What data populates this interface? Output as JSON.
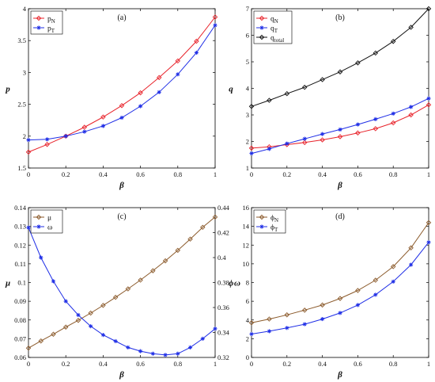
{
  "chart_data": [
    {
      "type": "line",
      "panel_label": "(a)",
      "xlabel": "β",
      "ylabel": "p",
      "xlim": [
        0,
        1
      ],
      "ylim": [
        1.5,
        4
      ],
      "xticks": [
        "0",
        "0.2",
        "0.4",
        "0.6",
        "0.8",
        "1"
      ],
      "yticks": [
        "1.5",
        "2",
        "2.5",
        "3",
        "3.5",
        "4"
      ],
      "legend": {
        "placement": "top-left"
      },
      "x": [
        0,
        0.1,
        0.2,
        0.3,
        0.4,
        0.5,
        0.6,
        0.7,
        0.8,
        0.9,
        1.0
      ],
      "series": [
        {
          "name": "p",
          "sub": "N",
          "color": "#e8232b",
          "marker": "diamond",
          "values": [
            1.75,
            1.87,
            2.0,
            2.14,
            2.3,
            2.48,
            2.68,
            2.92,
            3.18,
            3.49,
            3.87
          ]
        },
        {
          "name": "p",
          "sub": "T",
          "color": "#1f2ee6",
          "marker": "star",
          "values": [
            1.94,
            1.95,
            2.0,
            2.07,
            2.16,
            2.29,
            2.47,
            2.69,
            2.97,
            3.31,
            3.74
          ]
        }
      ]
    },
    {
      "type": "line",
      "panel_label": "(b)",
      "xlabel": "β",
      "ylabel": "q",
      "xlim": [
        0,
        1
      ],
      "ylim": [
        1,
        7
      ],
      "xticks": [
        "0",
        "0.2",
        "0.4",
        "0.6",
        "0.8",
        "1"
      ],
      "yticks": [
        "1",
        "2",
        "3",
        "4",
        "5",
        "6",
        "7"
      ],
      "legend": {
        "placement": "top-left"
      },
      "x": [
        0,
        0.1,
        0.2,
        0.3,
        0.4,
        0.5,
        0.6,
        0.7,
        0.8,
        0.9,
        1.0
      ],
      "series": [
        {
          "name": "q",
          "sub": "N",
          "color": "#e8232b",
          "marker": "diamond",
          "values": [
            1.75,
            1.8,
            1.88,
            1.96,
            2.06,
            2.18,
            2.32,
            2.48,
            2.7,
            3.0,
            3.38
          ]
        },
        {
          "name": "q",
          "sub": "T",
          "color": "#1f2ee6",
          "marker": "star",
          "values": [
            1.55,
            1.72,
            1.92,
            2.1,
            2.28,
            2.45,
            2.64,
            2.84,
            3.05,
            3.3,
            3.62
          ]
        },
        {
          "name": "q",
          "sub": "total",
          "color": "#111111",
          "marker": "diamond",
          "values": [
            3.32,
            3.55,
            3.8,
            4.04,
            4.33,
            4.62,
            4.96,
            5.33,
            5.77,
            6.3,
            7.0
          ]
        }
      ]
    },
    {
      "type": "line",
      "panel_label": "(c)",
      "xlabel": "β",
      "ylabel": "μ",
      "ylabel_right": "ω",
      "xlim": [
        0,
        1
      ],
      "ylim": [
        0.06,
        0.14
      ],
      "ylim_right": [
        0.32,
        0.44
      ],
      "xticks": [
        "0",
        "0.2",
        "0.4",
        "0.6",
        "0.8",
        "1"
      ],
      "yticks": [
        "0.06",
        "0.07",
        "0.08",
        "0.09",
        "0.1",
        "0.11",
        "0.12",
        "0.13",
        "0.14"
      ],
      "yticks_right": [
        "0.32",
        "0.34",
        "0.36",
        "0.38",
        "0.4",
        "0.42",
        "0.44"
      ],
      "legend": {
        "placement": "top-left"
      },
      "x": [
        0,
        0.0667,
        0.1333,
        0.2,
        0.2667,
        0.3333,
        0.4,
        0.4667,
        0.5333,
        0.6,
        0.6667,
        0.7333,
        0.8,
        0.8667,
        0.9333,
        1.0
      ],
      "series": [
        {
          "name": "μ",
          "sub": "",
          "color": "#8b5a2b",
          "marker": "diamond",
          "axis": "left",
          "values": [
            0.065,
            0.0688,
            0.0724,
            0.0762,
            0.0798,
            0.0837,
            0.0878,
            0.0921,
            0.0966,
            0.1013,
            0.1063,
            0.1116,
            0.1172,
            0.1232,
            0.1295,
            0.135
          ]
        },
        {
          "name": "ω",
          "sub": "",
          "color": "#1f2ee6",
          "marker": "star",
          "axis": "right",
          "values": [
            0.424,
            0.4,
            0.381,
            0.365,
            0.354,
            0.345,
            0.338,
            0.333,
            0.328,
            0.325,
            0.323,
            0.322,
            0.323,
            0.328,
            0.335,
            0.343
          ]
        }
      ]
    },
    {
      "type": "line",
      "panel_label": "(d)",
      "xlabel": "β",
      "ylabel": "ϕ",
      "xlim": [
        0,
        1
      ],
      "ylim": [
        0,
        16
      ],
      "xticks": [
        "0",
        "0.2",
        "0.4",
        "0.6",
        "0.8",
        "1"
      ],
      "yticks": [
        "0",
        "2",
        "4",
        "6",
        "8",
        "10",
        "12",
        "14",
        "16"
      ],
      "legend": {
        "placement": "top-left"
      },
      "x": [
        0,
        0.1,
        0.2,
        0.3,
        0.4,
        0.5,
        0.6,
        0.7,
        0.8,
        0.9,
        1.0
      ],
      "series": [
        {
          "name": "ϕ",
          "sub": "N",
          "color": "#8b5a2b",
          "marker": "diamond",
          "values": [
            3.7,
            4.1,
            4.55,
            5.05,
            5.6,
            6.3,
            7.15,
            8.25,
            9.7,
            11.7,
            14.4
          ]
        },
        {
          "name": "ϕ",
          "sub": "T",
          "color": "#1f2ee6",
          "marker": "star",
          "values": [
            2.5,
            2.8,
            3.15,
            3.55,
            4.1,
            4.75,
            5.6,
            6.7,
            8.1,
            9.9,
            12.3
          ]
        }
      ]
    }
  ]
}
